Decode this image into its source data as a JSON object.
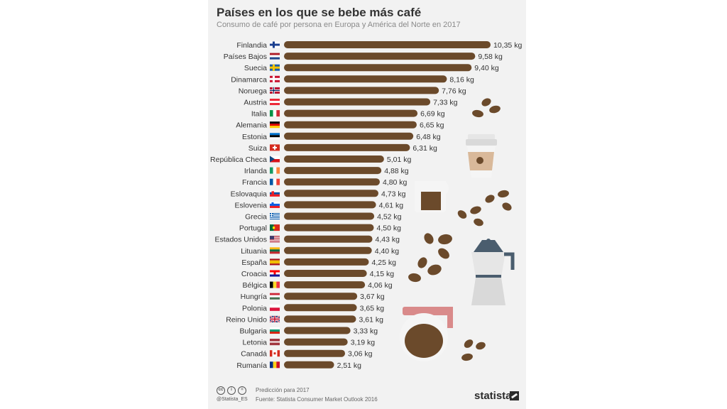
{
  "header": {
    "title": "Países en los que se bebe más café",
    "subtitle": "Consumo de café por persona en Europa y América del Norte en 2017"
  },
  "colors": {
    "bar": "#6b4a2b",
    "panel": "#f2f2f2",
    "text": "#333333"
  },
  "chart_data": {
    "type": "bar",
    "orientation": "horizontal",
    "title": "Países en los que se bebe más café",
    "subtitle": "Consumo de café por persona en Europa y América del Norte en 2017",
    "unit": "kg",
    "categories": [
      "Finlandia",
      "Países Bajos",
      "Suecia",
      "Dinamarca",
      "Noruega",
      "Austria",
      "Italia",
      "Alemania",
      "Estonia",
      "Suiza",
      "República Checa",
      "Irlanda",
      "Francia",
      "Eslovaquia",
      "Eslovenia",
      "Grecia",
      "Portugal",
      "Estados Unidos",
      "Lituania",
      "España",
      "Croacia",
      "Bélgica",
      "Hungría",
      "Polonia",
      "Reino Unido",
      "Bulgaria",
      "Letonia",
      "Canadá",
      "Rumanía"
    ],
    "values": [
      10.35,
      9.58,
      9.4,
      8.16,
      7.76,
      7.33,
      6.69,
      6.65,
      6.48,
      6.31,
      5.01,
      4.88,
      4.8,
      4.73,
      4.61,
      4.52,
      4.5,
      4.43,
      4.4,
      4.25,
      4.15,
      4.06,
      3.67,
      3.65,
      3.61,
      3.33,
      3.19,
      3.06,
      2.51
    ],
    "value_labels": [
      "10,35 kg",
      "9,58 kg",
      "9,40 kg",
      "8,16 kg",
      "7,76 kg",
      "7,33 kg",
      "6,69 kg",
      "6,65 kg",
      "6,48 kg",
      "6,31 kg",
      "5,01 kg",
      "4,88 kg",
      "4,80 kg",
      "4,73 kg",
      "4,61 kg",
      "4,52 kg",
      "4,50 kg",
      "4,43 kg",
      "4,40 kg",
      "4,25 kg",
      "4,15 kg",
      "4,06 kg",
      "3,67 kg",
      "3,65 kg",
      "3,61 kg",
      "3,33 kg",
      "3,19 kg",
      "3,06 kg",
      "2,51 kg"
    ],
    "flags": [
      "fi",
      "nl",
      "se",
      "dk",
      "no",
      "at",
      "it",
      "de",
      "ee",
      "ch",
      "cz",
      "ie",
      "fr",
      "sk",
      "si",
      "gr",
      "pt",
      "us",
      "lt",
      "es",
      "hr",
      "be",
      "hu",
      "pl",
      "gb",
      "bg",
      "lv",
      "ca",
      "ro"
    ],
    "xlim": [
      0,
      10.35
    ],
    "grid": false,
    "legend": "none"
  },
  "footer": {
    "handle": "@Statista_ES",
    "note": "Predicción para 2017",
    "source": "Fuente: Statista Consumer Market Outlook 2016",
    "brand": "statista"
  }
}
